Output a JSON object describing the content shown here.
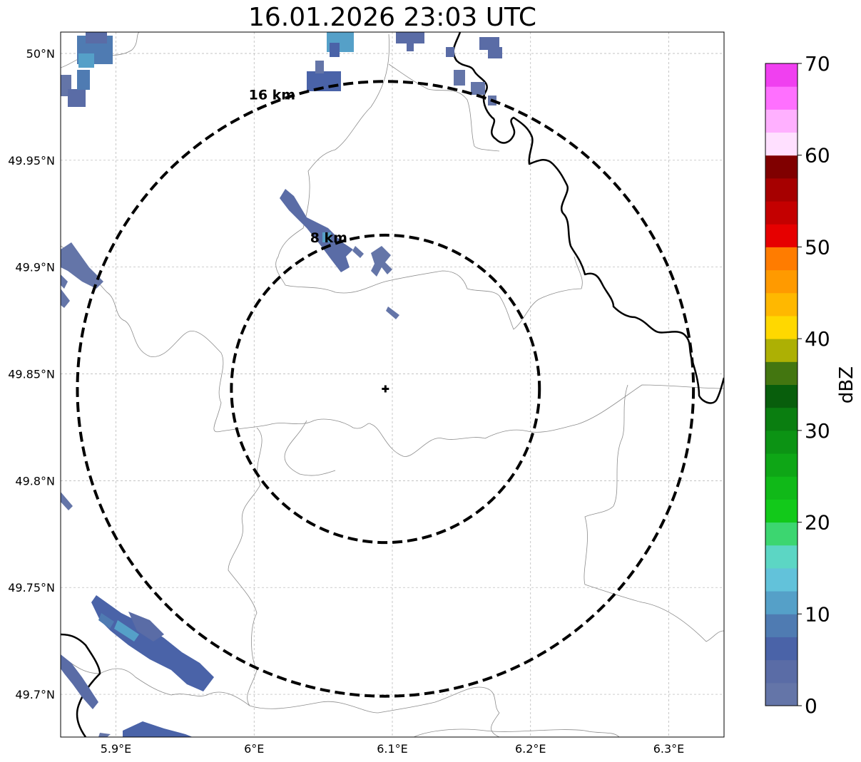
{
  "title": "16.01.2026 23:03 UTC",
  "map": {
    "lat_ticks": [
      "50°N",
      "49.95°N",
      "49.9°N",
      "49.85°N",
      "49.8°N",
      "49.75°N",
      "49.7°N"
    ],
    "lon_ticks": [
      "5.9°E",
      "6°E",
      "6.1°E",
      "6.2°E",
      "6.3°E"
    ],
    "lat_values": [
      50.0,
      49.95,
      49.9,
      49.85,
      49.8,
      49.75,
      49.7
    ],
    "lon_values": [
      5.9,
      6.0,
      6.1,
      6.2,
      6.3
    ],
    "lat_range": [
      49.68,
      50.01
    ],
    "lon_range": [
      5.86,
      6.34
    ],
    "radar_center": {
      "lat": 49.843,
      "lon": 6.095
    },
    "range_rings": [
      {
        "label": "8 km",
        "radius_km": 8
      },
      {
        "label": "16 km",
        "radius_km": 16
      }
    ],
    "grid": true
  },
  "colorbar": {
    "label": "dBZ",
    "ticks": [
      "0",
      "10",
      "20",
      "30",
      "40",
      "50",
      "60",
      "70"
    ],
    "min": 0,
    "max": 70,
    "step": 2.5,
    "colors": [
      "#6475a8",
      "#5a6ca6",
      "#4a63a8",
      "#4f7bb2",
      "#55a0c8",
      "#62c2da",
      "#5cd6c4",
      "#3cd670",
      "#12c91a",
      "#10b918",
      "#0ea616",
      "#0c9314",
      "#0a7e10",
      "#085e0c",
      "#437610",
      "#adb004",
      "#ffd800",
      "#ffb800",
      "#ff9a00",
      "#ff7c00",
      "#e60000",
      "#c40000",
      "#a60000",
      "#800000",
      "#ffe0ff",
      "#ffb0ff",
      "#ff70ff",
      "#f040f0"
    ]
  }
}
